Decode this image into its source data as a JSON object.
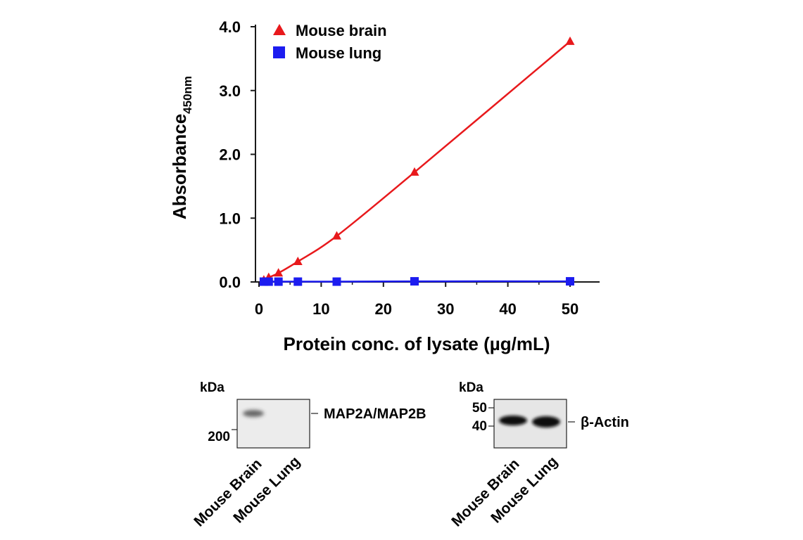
{
  "chart_data": {
    "type": "line",
    "xlabel": "Protein conc. of lysate (µg/mL)",
    "ylabel_main": "Absorbance",
    "ylabel_sub": "450nm",
    "xlim": [
      0,
      55
    ],
    "ylim": [
      0,
      4.0
    ],
    "x_ticks": [
      0,
      10,
      20,
      30,
      40,
      50
    ],
    "x_tick_labels": [
      "0",
      "10",
      "20",
      "30",
      "40",
      "50"
    ],
    "y_ticks": [
      0,
      1.0,
      2.0,
      3.0,
      4.0
    ],
    "y_tick_labels": [
      "0.0",
      "1.0",
      "2.0",
      "3.0",
      "4.0"
    ],
    "grid": false,
    "legend_position": "top-left",
    "series": [
      {
        "name": "Mouse brain",
        "color": "#e8191c",
        "marker": "triangle",
        "x": [
          0.78,
          1.56,
          3.13,
          6.25,
          12.5,
          25,
          50
        ],
        "y": [
          0.03,
          0.07,
          0.14,
          0.32,
          0.72,
          1.72,
          3.77
        ]
      },
      {
        "name": "Mouse lung",
        "color": "#1c1cf0",
        "marker": "square",
        "x": [
          0.78,
          1.56,
          3.13,
          6.25,
          12.5,
          25,
          50
        ],
        "y": [
          0.005,
          0.005,
          0.005,
          0.005,
          0.005,
          0.01,
          0.01
        ]
      }
    ]
  },
  "blots": [
    {
      "kda_label": "kDa",
      "markers": [
        "200"
      ],
      "target_label": "MAP2A/MAP2B",
      "lanes": [
        "Mouse Brain",
        "Mouse Lung"
      ],
      "band_intensity": [
        0.75,
        0.0
      ]
    },
    {
      "kda_label": "kDa",
      "markers": [
        "50",
        "40"
      ],
      "target_label": "β-Actin",
      "lanes": [
        "Mouse Brain",
        "Mouse Lung"
      ],
      "band_intensity": [
        1.0,
        1.0
      ]
    }
  ]
}
